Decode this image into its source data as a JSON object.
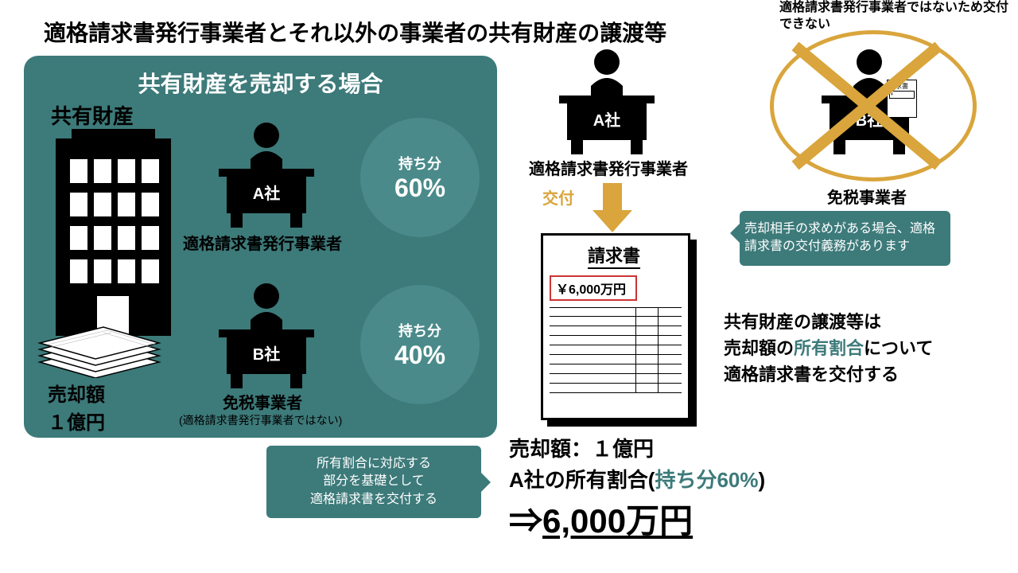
{
  "colors": {
    "teal_panel": "#3d7a7a",
    "teal_circle": "#4a8a8a",
    "orange": "#d9a53c",
    "red_box": "#cc3333",
    "white": "#ffffff",
    "black": "#000000"
  },
  "title": "適格請求書発行事業者とそれ以外の事業者の共有財産の譲渡等",
  "left_panel": {
    "title": "共有財産を売却する場合",
    "share_label": "共有財産",
    "sale_amount_line1": "売却額",
    "sale_amount_line2": "１億円",
    "entity_a": {
      "name": "A社",
      "label": "適格請求書発行事業者"
    },
    "entity_b": {
      "name": "B社",
      "label": "免税事業者",
      "sublabel": "(適格請求書発行事業者ではない)"
    },
    "share_a": {
      "label": "持ち分",
      "pct": "60%"
    },
    "share_b": {
      "label": "持ち分",
      "pct": "40%"
    }
  },
  "callout_bottom_left": "所有割合に対応する\n部分を基礎として\n適格請求書を交付する",
  "right": {
    "entity_a": {
      "name": "A社",
      "label": "適格請求書発行事業者"
    },
    "entity_b": {
      "name": "B社",
      "label": "免税事業者"
    },
    "top_note": "適格請求書発行事業者ではないため交付できない",
    "deliver": "交付",
    "invoice": {
      "title": "請求書",
      "amount": "￥6,000万円"
    },
    "callout_right": "売却相手の求めがある場合、適格請求書の交付義務があります",
    "text_block_l1": "共有財産の譲渡等は",
    "text_block_l2a": "売却額の",
    "text_block_l2b": "所有割合",
    "text_block_l2c": "について",
    "text_block_l3": "適格請求書を交付する",
    "calc_l1": "売却額：１億円",
    "calc_l2a": "A社の所有割合(",
    "calc_l2b": "持ち分60%",
    "calc_l2c": ")",
    "result_arrow": "⇒",
    "result": "6,000万円"
  }
}
